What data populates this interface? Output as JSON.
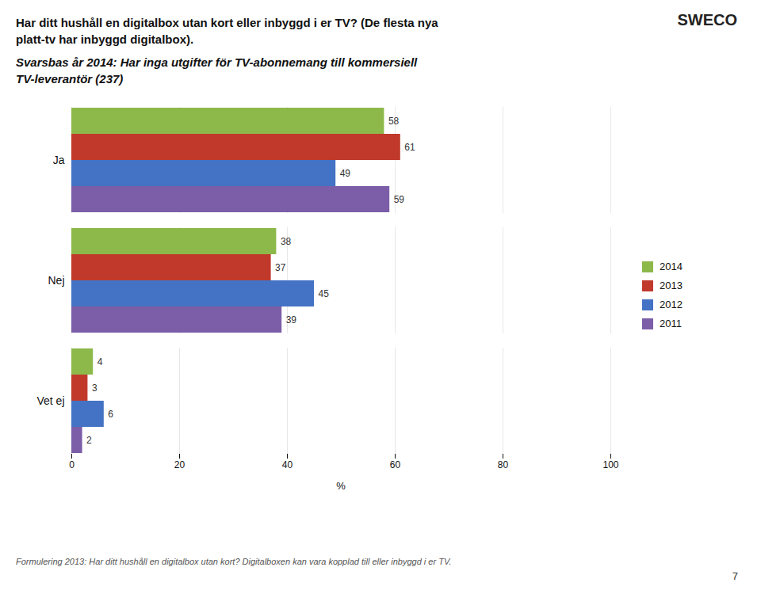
{
  "chart_data": {
    "type": "bar",
    "orientation": "horizontal",
    "title": "Har ditt hushåll en digitalbox utan kort eller inbyggd i er TV?  (De flesta nya\nplatt-tv har inbyggd digitalbox).",
    "subtitle": "Svarsbas år 2014: Har inga utgifter för TV-abonnemang till kommersiell\nTV-leverantör (237)",
    "annotations": [
      "SWECO",
      "Formulering 2013: Har ditt hushåll en digitalbox utan kort? Digitalboxen kan vara kopplad till eller inbyggd i er TV.",
      "7"
    ],
    "categories": [
      "Ja",
      "Nej",
      "Vet ej"
    ],
    "series": [
      {
        "name": "2014",
        "color": "#8db84a",
        "values": [
          58,
          38,
          4
        ]
      },
      {
        "name": "2013",
        "color": "#c0392b",
        "values": [
          61,
          37,
          3
        ]
      },
      {
        "name": "2012",
        "color": "#4472c4",
        "values": [
          49,
          45,
          6
        ]
      },
      {
        "name": "2011",
        "color": "#7b5ea7",
        "values": [
          59,
          39,
          2
        ]
      }
    ],
    "xlabel": "%",
    "xlim": [
      0,
      100
    ],
    "xticks": [
      0,
      20,
      40,
      60,
      80,
      100
    ],
    "grid": true,
    "legend": "right",
    "data_labels": true
  }
}
